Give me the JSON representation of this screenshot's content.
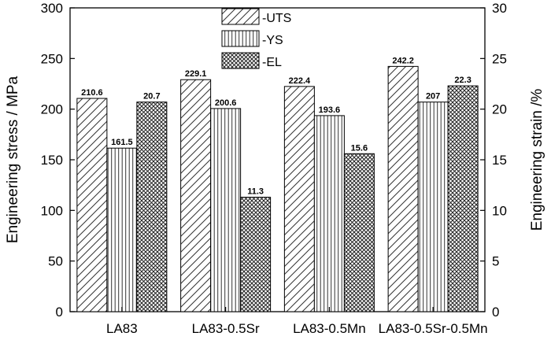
{
  "chart_data": {
    "type": "bar",
    "categories": [
      "LA83",
      "LA83-0.5Sr",
      "LA83-0.5Mn",
      "LA83-0.5Sr-0.5Mn"
    ],
    "series": [
      {
        "name": "-UTS",
        "axis": "left",
        "pattern": "diagonal-hatch",
        "values": [
          210.6,
          229.1,
          222.4,
          242.2
        ],
        "labels": [
          "210.6",
          "229.1",
          "222.4",
          "242.2"
        ]
      },
      {
        "name": "-YS",
        "axis": "left",
        "pattern": "vertical-lines",
        "values": [
          161.5,
          200.6,
          193.6,
          207
        ],
        "labels": [
          "161.5",
          "200.6",
          "193.6",
          "207"
        ]
      },
      {
        "name": "-EL",
        "axis": "right",
        "pattern": "crosshatch",
        "values": [
          20.7,
          11.3,
          15.6,
          22.3
        ],
        "labels": [
          "20.7",
          "11.3",
          "15.6",
          "22.3"
        ]
      }
    ],
    "ylabel": "Engineering stress / MPa",
    "y2label": "Engineering strain /%",
    "ylim": [
      0,
      300
    ],
    "y2lim": [
      0,
      30
    ],
    "yticks": [
      "0",
      "50",
      "100",
      "150",
      "200",
      "250",
      "300"
    ],
    "y2ticks": [
      "0",
      "5",
      "10",
      "15",
      "20",
      "25",
      "30"
    ],
    "grid": false,
    "legend_position": "top-center"
  }
}
